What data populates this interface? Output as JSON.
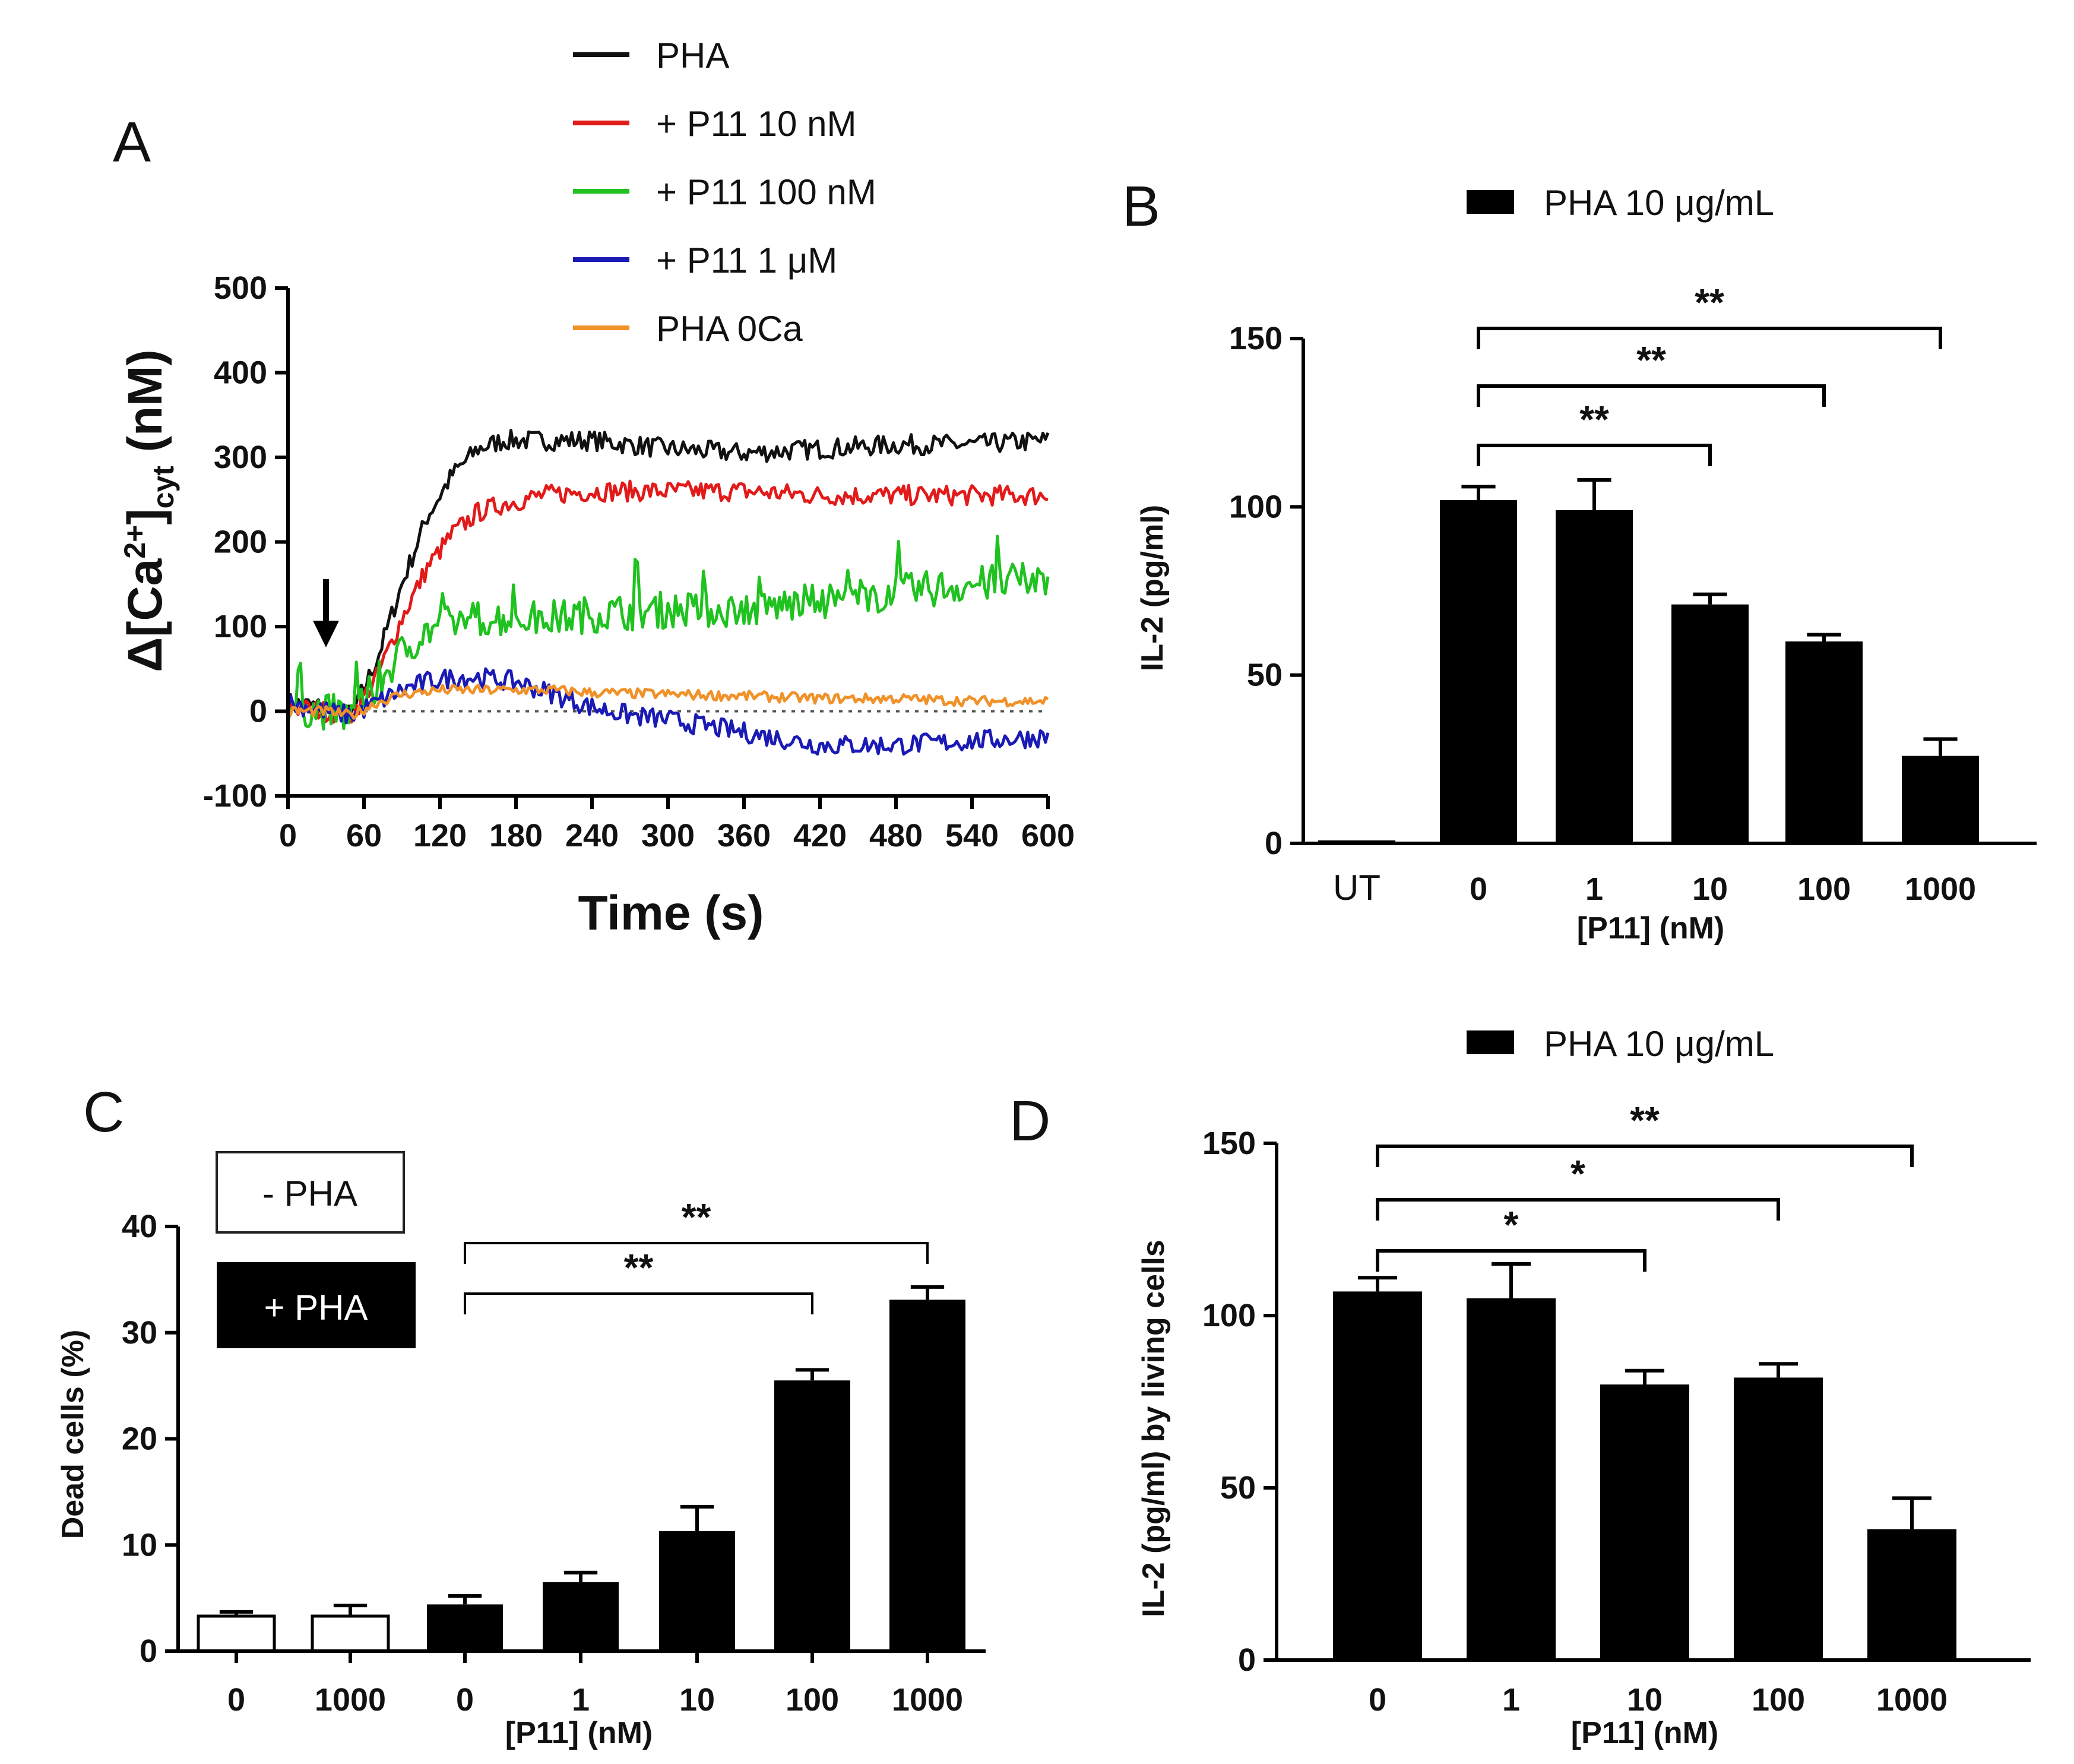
{
  "chart_data": [
    {
      "panel": "A",
      "type": "line",
      "xlabel": "Time (s)",
      "ylabel": "Δ[Ca2+]cyt (nM)",
      "ylabel_parts": {
        "pre": "Δ[Ca",
        "sup": "2+",
        "mid": "]",
        "sub": "cyt",
        "post": " (nM)"
      },
      "xlim": [
        0,
        600
      ],
      "ylim": [
        -100,
        500
      ],
      "xticks": [
        0,
        60,
        120,
        180,
        240,
        300,
        360,
        420,
        480,
        540,
        600
      ],
      "yticks": [
        -100,
        0,
        100,
        200,
        300,
        400,
        500
      ],
      "reference_line": 0,
      "arrow_at_x": 30,
      "legend_position": "top",
      "series": [
        {
          "name": "PHA",
          "color": "#111111",
          "x": [
            0,
            30,
            50,
            70,
            90,
            110,
            130,
            150,
            170,
            200,
            240,
            300,
            360,
            420,
            480,
            540,
            600
          ],
          "y": [
            10,
            5,
            -5,
            60,
            150,
            230,
            280,
            310,
            320,
            320,
            320,
            310,
            305,
            310,
            315,
            315,
            320
          ]
        },
        {
          "name": "+ P11 10 nM",
          "color": "#e21a1a",
          "x": [
            0,
            30,
            50,
            70,
            90,
            110,
            130,
            150,
            170,
            200,
            240,
            300,
            360,
            420,
            480,
            540,
            600
          ],
          "y": [
            5,
            0,
            -5,
            40,
            110,
            170,
            210,
            235,
            245,
            255,
            260,
            260,
            260,
            255,
            255,
            255,
            255
          ]
        },
        {
          "name": "+ P11 100 nM",
          "color": "#1fc21f",
          "x": [
            0,
            30,
            50,
            70,
            90,
            110,
            130,
            150,
            180,
            210,
            240,
            300,
            360,
            420,
            480,
            540,
            600
          ],
          "y": [
            5,
            0,
            -5,
            30,
            70,
            95,
            105,
            110,
            110,
            110,
            115,
            120,
            120,
            130,
            140,
            150,
            155
          ]
        },
        {
          "name": "+ P11 1 μM",
          "color": "#1a1ab5",
          "x": [
            0,
            30,
            50,
            70,
            90,
            110,
            130,
            150,
            180,
            210,
            240,
            270,
            300,
            360,
            420,
            480,
            540,
            600
          ],
          "y": [
            10,
            0,
            -5,
            10,
            25,
            35,
            40,
            40,
            35,
            20,
            5,
            -5,
            -10,
            -25,
            -40,
            -40,
            -35,
            -30
          ]
        },
        {
          "name": "PHA 0Ca",
          "color": "#f0922a",
          "x": [
            0,
            30,
            50,
            70,
            90,
            120,
            150,
            180,
            210,
            240,
            300,
            360,
            420,
            480,
            540,
            600
          ],
          "y": [
            0,
            0,
            -5,
            10,
            20,
            25,
            25,
            25,
            25,
            22,
            20,
            18,
            15,
            15,
            12,
            12
          ]
        }
      ]
    },
    {
      "panel": "B",
      "type": "bar",
      "legend": "PHA 10 μg/mL",
      "legend_position": "top",
      "xlabel": "[P11] (nM)",
      "ylabel": "IL-2 (pg/ml)",
      "ylim": [
        0,
        150
      ],
      "yticks": [
        0,
        50,
        100,
        150
      ],
      "categories": [
        "UT",
        "0",
        "1",
        "10",
        "100",
        "1000"
      ],
      "values": [
        0,
        102,
        99,
        71,
        60,
        26
      ],
      "errors": [
        0,
        4,
        9,
        3,
        2,
        5
      ],
      "bar_colors": [
        "#000000",
        "#000000",
        "#000000",
        "#000000",
        "#000000",
        "#000000"
      ],
      "significance": [
        {
          "from": "0",
          "to": "10",
          "label": "**"
        },
        {
          "from": "0",
          "to": "100",
          "label": "**"
        },
        {
          "from": "0",
          "to": "1000",
          "label": "**"
        }
      ]
    },
    {
      "panel": "C",
      "type": "bar",
      "legend": [
        "- PHA",
        "+ PHA"
      ],
      "legend_position": "top-left",
      "xlabel": "[P11] (nM)",
      "ylabel": "Dead cells (%)",
      "ylim": [
        0,
        40
      ],
      "yticks": [
        0,
        10,
        20,
        30,
        40
      ],
      "categories": [
        "0",
        "1000",
        "0",
        "1",
        "10",
        "100",
        "1000"
      ],
      "groups": [
        "- PHA",
        "- PHA",
        "+ PHA",
        "+ PHA",
        "+ PHA",
        "+ PHA",
        "+ PHA"
      ],
      "values": [
        3.3,
        3.3,
        4.4,
        6.5,
        11.3,
        25.5,
        33.1
      ],
      "errors": [
        0.4,
        1.0,
        0.8,
        0.9,
        2.3,
        1.0,
        1.2
      ],
      "bar_colors": [
        "#ffffff",
        "#ffffff",
        "#000000",
        "#000000",
        "#000000",
        "#000000",
        "#000000"
      ],
      "significance": [
        {
          "from": 2,
          "to": 5,
          "label": "**"
        },
        {
          "from": 2,
          "to": 6,
          "label": "**"
        }
      ]
    },
    {
      "panel": "D",
      "type": "bar",
      "legend": "PHA 10 μg/mL",
      "legend_position": "top",
      "xlabel": "[P11] (nM)",
      "ylabel": "IL-2 (pg/ml) by living cells",
      "ylim": [
        0,
        150
      ],
      "yticks": [
        0,
        50,
        100,
        150
      ],
      "categories": [
        "0",
        "1",
        "10",
        "100",
        "1000"
      ],
      "values": [
        107,
        105,
        80,
        82,
        38
      ],
      "errors": [
        4,
        10,
        4,
        4,
        9
      ],
      "bar_colors": [
        "#000000",
        "#000000",
        "#000000",
        "#000000",
        "#000000"
      ],
      "significance": [
        {
          "from": "0",
          "to": "10",
          "label": "*"
        },
        {
          "from": "0",
          "to": "100",
          "label": "*"
        },
        {
          "from": "0",
          "to": "1000",
          "label": "**"
        }
      ]
    }
  ]
}
